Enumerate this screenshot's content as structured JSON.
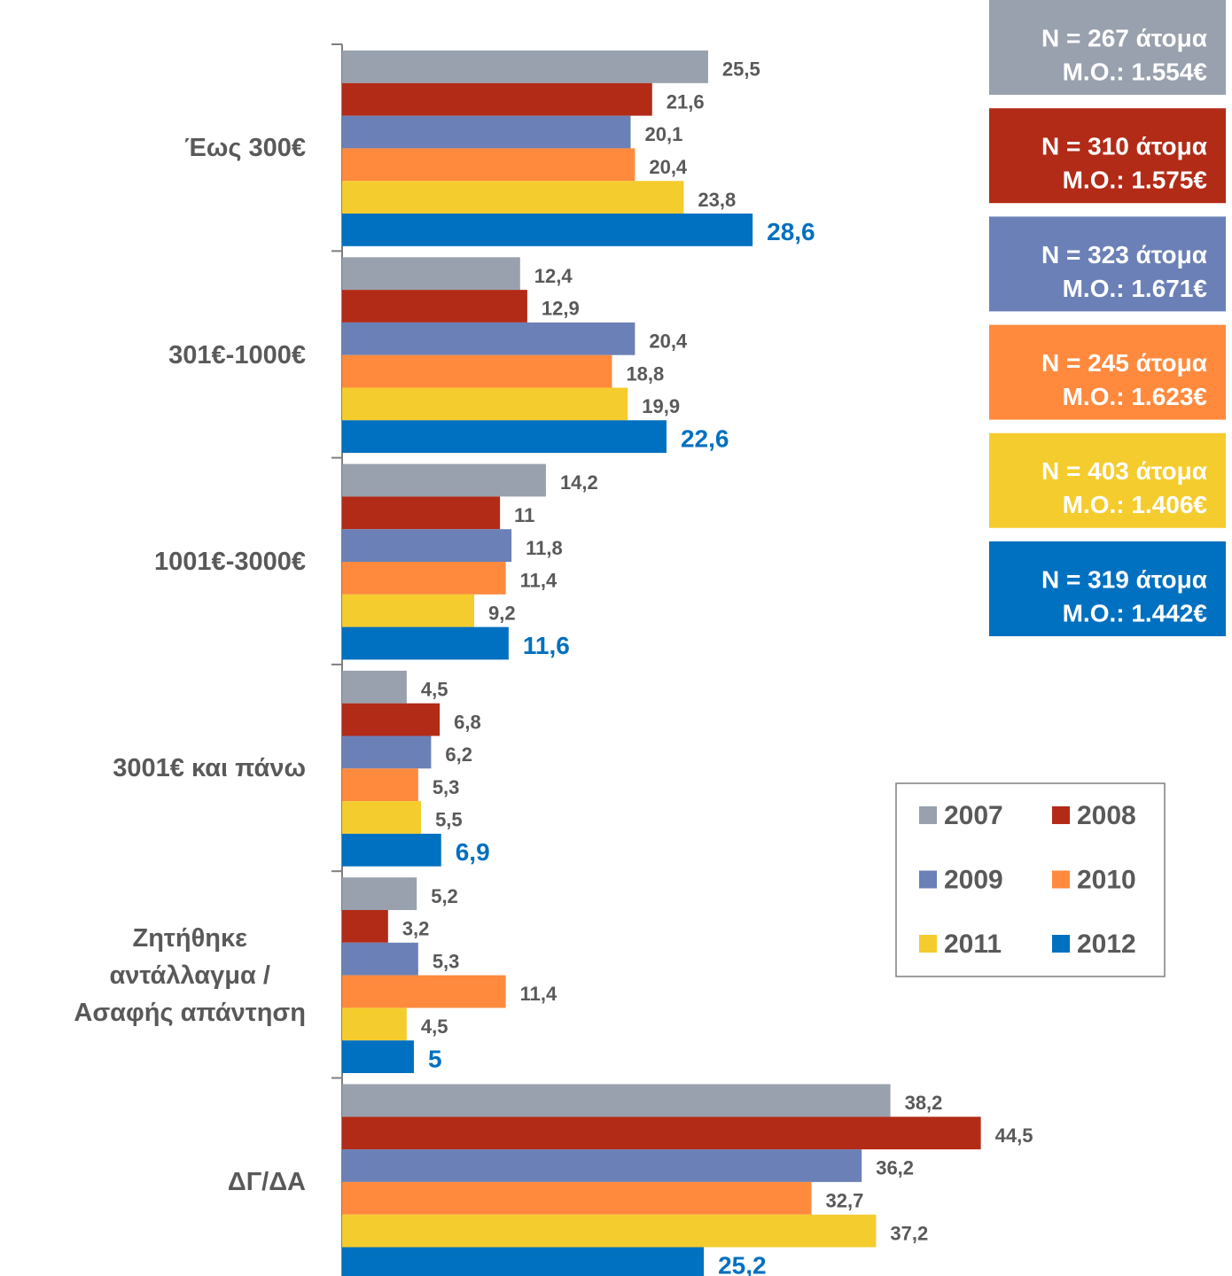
{
  "chart_data": {
    "type": "hbar",
    "categories": [
      "Έως 300€",
      "301€-1000€",
      "1001€-3000€",
      "3001€ και πάνω",
      "Ζητήθηκε\nαντάλλαγμα /\nΑσαφής απάντηση",
      "ΔΓ/ΔΑ"
    ],
    "xlim": [
      0,
      62
    ],
    "series": [
      {
        "name": "2007",
        "color": "#98a1ad",
        "values": [
          25.5,
          12.4,
          14.2,
          4.5,
          5.2,
          38.2
        ],
        "value_labels": [
          "25,5",
          "12,4",
          "14,2",
          "4,5",
          "5,2",
          "38,2"
        ]
      },
      {
        "name": "2008",
        "color": "#b22b17",
        "values": [
          21.6,
          12.9,
          11,
          6.8,
          3.2,
          44.5
        ],
        "value_labels": [
          "21,6",
          "12,9",
          "11",
          "6,8",
          "3,2",
          "44,5"
        ]
      },
      {
        "name": "2009",
        "color": "#6b80b6",
        "values": [
          20.1,
          20.4,
          11.8,
          6.2,
          5.3,
          36.2
        ],
        "value_labels": [
          "20,1",
          "20,4",
          "11,8",
          "6,2",
          "5,3",
          "36,2"
        ]
      },
      {
        "name": "2010",
        "color": "#ff8a3d",
        "values": [
          20.4,
          18.8,
          11.4,
          5.3,
          11.4,
          32.7
        ],
        "value_labels": [
          "20,4",
          "18,8",
          "11,4",
          "5,3",
          "11,4",
          "32,7"
        ]
      },
      {
        "name": "2011",
        "color": "#f5cc2e",
        "values": [
          23.8,
          19.9,
          9.2,
          5.5,
          4.5,
          37.2
        ],
        "value_labels": [
          "23,8",
          "19,9",
          "9,2",
          "5,5",
          "4,5",
          "37,2"
        ]
      },
      {
        "name": "2012",
        "color": "#0070c0",
        "values": [
          28.6,
          22.6,
          11.6,
          6.9,
          5,
          25.2
        ],
        "value_labels": [
          "28,6",
          "22,6",
          "11,6",
          "6,9",
          "5",
          "25,2"
        ]
      }
    ],
    "annotations": [
      [
        "N = 267 άτομα",
        "Μ.Ο.: 1.554€"
      ],
      [
        "N = 310 άτομα",
        "Μ.Ο.: 1.575€"
      ],
      [
        "N = 323 άτομα",
        "Μ.Ο.: 1.671€"
      ],
      [
        "N = 245 άτομα",
        "Μ.Ο.: 1.623€"
      ],
      [
        "N = 403 άτομα",
        "Μ.Ο.: 1.406€"
      ],
      [
        "N = 319 άτομα",
        "Μ.Ο.: 1.442€"
      ]
    ]
  }
}
